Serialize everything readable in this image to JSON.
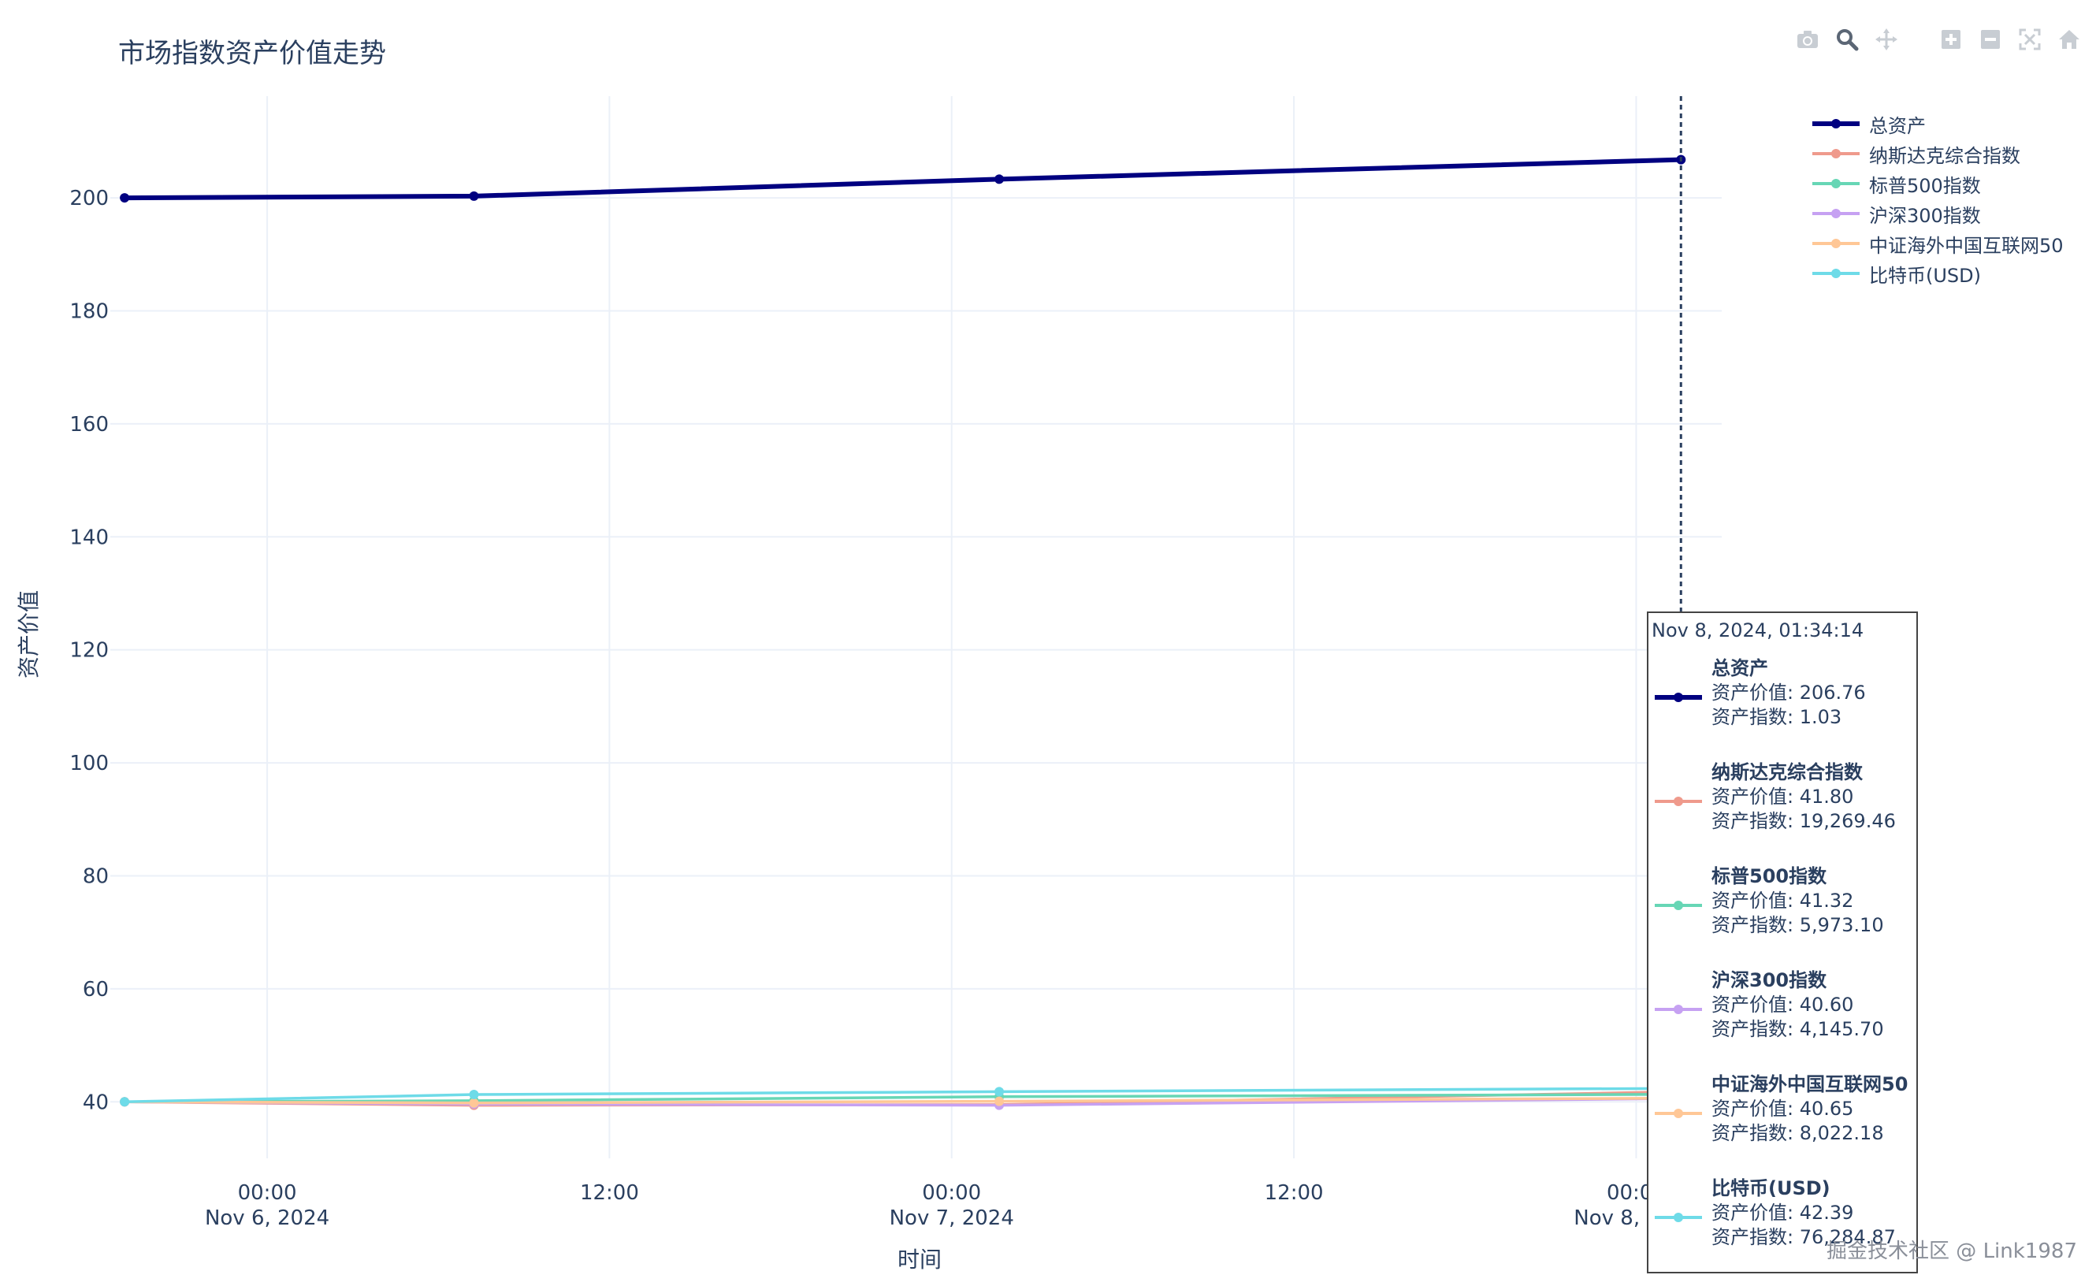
{
  "title": "市场指数资产价值走势",
  "modebar": {
    "icons": [
      "camera-icon",
      "zoom-icon",
      "pan-icon",
      "zoom-in-icon",
      "zoom-out-icon",
      "autoscale-icon",
      "reset-axes-icon"
    ]
  },
  "colors": {
    "total": "#000080",
    "nasdaq": "#ef9a8c",
    "sp500": "#67d6b5",
    "csi300": "#c6a1f2",
    "china_internet": "#ffc796",
    "btc": "#6edbe8",
    "grid": "#ebf0f8",
    "text": "#2a3f5f"
  },
  "legend": [
    {
      "label": "总资产",
      "color": "#000080"
    },
    {
      "label": "纳斯达克综合指数",
      "color": "#ef9a8c"
    },
    {
      "label": "标普500指数",
      "color": "#67d6b5"
    },
    {
      "label": "沪深300指数",
      "color": "#c6a1f2"
    },
    {
      "label": "中证海外中国互联网50",
      "color": "#ffc796"
    },
    {
      "label": "比特币(USD)",
      "color": "#6edbe8"
    }
  ],
  "tooltip": {
    "header": "Nov 8, 2024, 01:34:14",
    "items": [
      {
        "name": "总资产",
        "value_line": "资产价值: 206.76",
        "index_line": "资产指数: 1.03",
        "color": "#000080"
      },
      {
        "name": "纳斯达克综合指数",
        "value_line": "资产价值: 41.80",
        "index_line": "资产指数: 19,269.46",
        "color": "#ef9a8c"
      },
      {
        "name": "标普500指数",
        "value_line": "资产价值: 41.32",
        "index_line": "资产指数: 5,973.10",
        "color": "#67d6b5"
      },
      {
        "name": "沪深300指数",
        "value_line": "资产价值: 40.60",
        "index_line": "资产指数: 4,145.70",
        "color": "#c6a1f2"
      },
      {
        "name": "中证海外中国互联网50",
        "value_line": "资产价值: 40.65",
        "index_line": "资产指数: 8,022.18",
        "color": "#ffc796"
      },
      {
        "name": "比特币(USD)",
        "value_line": "资产价值: 42.39",
        "index_line": "资产指数: 76,284.87",
        "color": "#6edbe8"
      }
    ]
  },
  "watermark": "掘金技术社区 @ Link1987",
  "chart_data": {
    "type": "line",
    "title": "市场指数资产价值走势",
    "xlabel": "时间",
    "ylabel": "资产价值",
    "grid": true,
    "legend_position": "top-right",
    "xlim": [
      "2024-11-05 18:30",
      "2024-11-08 03:00"
    ],
    "ylim": [
      30,
      218
    ],
    "x_ticks": [
      {
        "t": "2024-11-06 00:00",
        "line1": "00:00",
        "line2": "Nov 6, 2024"
      },
      {
        "t": "2024-11-06 12:00",
        "line1": "12:00",
        "line2": ""
      },
      {
        "t": "2024-11-07 00:00",
        "line1": "00:00",
        "line2": "Nov 7, 2024"
      },
      {
        "t": "2024-11-07 12:00",
        "line1": "12:00",
        "line2": ""
      },
      {
        "t": "2024-11-08 00:00",
        "line1": "00:00",
        "line2": "Nov 8, 2024"
      }
    ],
    "y_ticks": [
      40,
      60,
      80,
      100,
      120,
      140,
      160,
      180,
      200
    ],
    "hover_x": "2024-11-08 01:34:14",
    "x": [
      "2024-11-05 19:00",
      "2024-11-06 07:15",
      "2024-11-07 01:40",
      "2024-11-08 01:34:14"
    ],
    "series": [
      {
        "name": "总资产",
        "color": "#000080",
        "width": 6,
        "values": [
          200,
          200.3,
          203.3,
          206.76
        ]
      },
      {
        "name": "纳斯达克综合指数",
        "color": "#ef9a8c",
        "width": 3.5,
        "values": [
          40,
          39.4,
          39.5,
          41.8
        ]
      },
      {
        "name": "标普500指数",
        "color": "#67d6b5",
        "width": 3.5,
        "values": [
          40,
          40.2,
          40.9,
          41.32
        ]
      },
      {
        "name": "沪深300指数",
        "color": "#c6a1f2",
        "width": 3.5,
        "values": [
          40,
          39.6,
          39.4,
          40.6
        ]
      },
      {
        "name": "中证海外中国互联网50",
        "color": "#ffc796",
        "width": 3.5,
        "values": [
          40,
          39.8,
          40.1,
          40.65
        ]
      },
      {
        "name": "比特币(USD)",
        "color": "#6edbe8",
        "width": 3.5,
        "values": [
          40,
          41.3,
          41.8,
          42.39
        ]
      }
    ]
  }
}
